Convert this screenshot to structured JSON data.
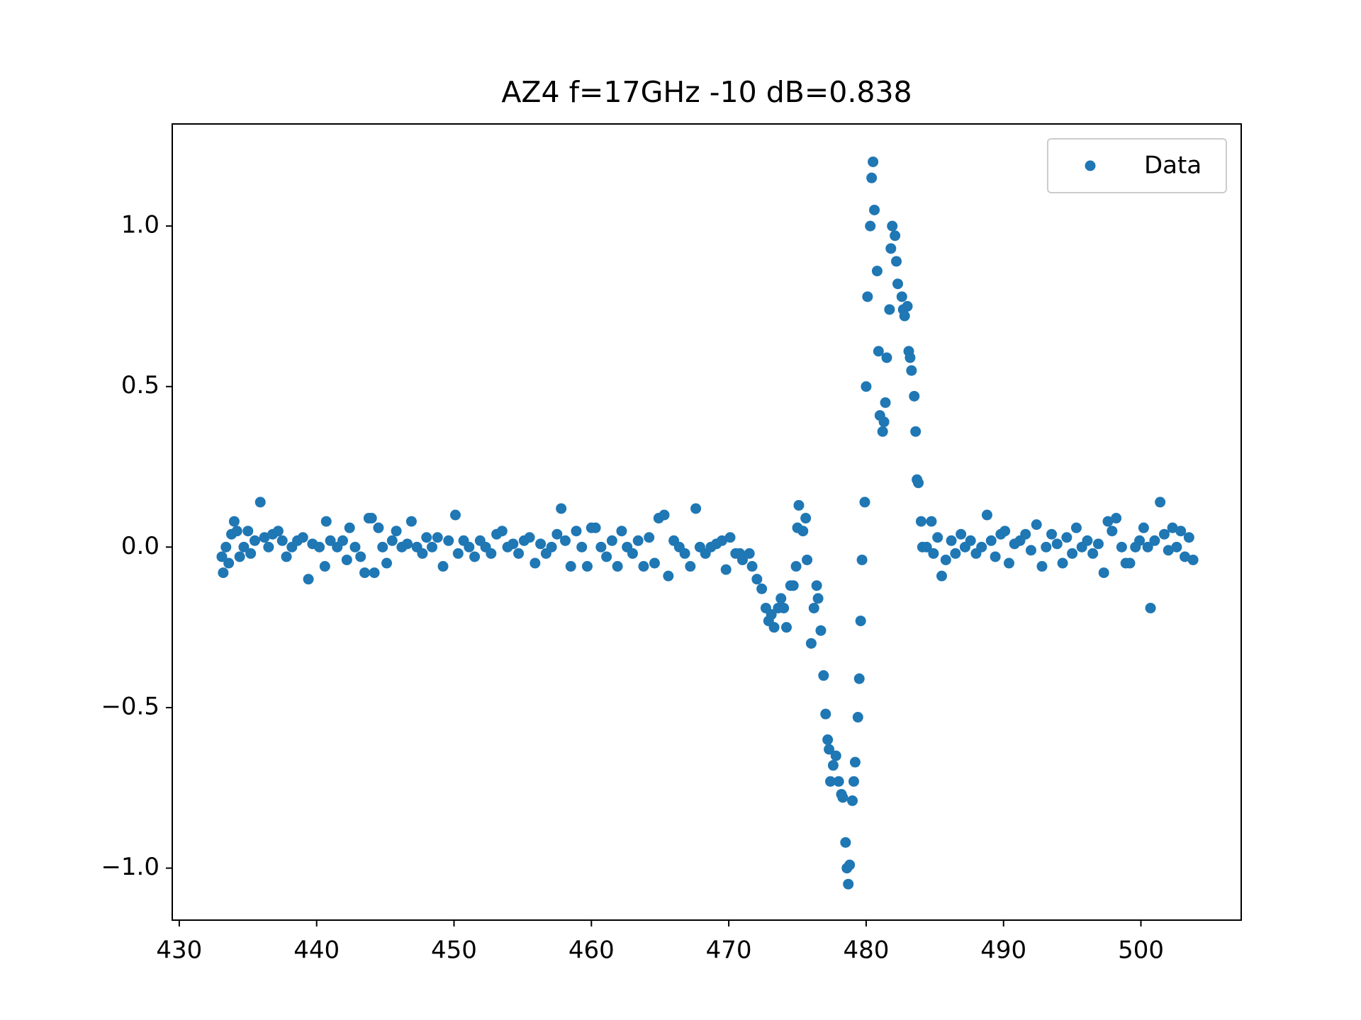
{
  "chart_data": {
    "type": "scatter",
    "title": "AZ4 f=17GHz -10 dB=0.838",
    "series": [
      {
        "name": "Data",
        "color": "#1f77b4",
        "x": [
          433.1,
          433.2,
          433.4,
          433.6,
          433.8,
          434.0,
          434.2,
          434.4,
          434.7,
          435.0,
          435.2,
          435.5,
          435.9,
          436.2,
          436.5,
          436.8,
          437.2,
          437.5,
          437.8,
          438.2,
          438.6,
          439.0,
          439.4,
          439.7,
          440.2,
          440.6,
          440.7,
          441.0,
          441.5,
          441.9,
          442.2,
          442.4,
          442.8,
          443.2,
          443.5,
          443.8,
          444.0,
          444.2,
          444.5,
          444.8,
          445.1,
          445.5,
          445.8,
          446.2,
          446.6,
          446.9,
          447.3,
          447.7,
          448.0,
          448.4,
          448.8,
          449.2,
          449.6,
          450.1,
          450.3,
          450.7,
          451.1,
          451.5,
          451.9,
          452.3,
          452.7,
          453.1,
          453.5,
          453.9,
          454.3,
          454.7,
          455.1,
          455.5,
          455.9,
          456.3,
          456.7,
          457.1,
          457.5,
          457.8,
          458.1,
          458.5,
          458.9,
          459.3,
          459.7,
          460.0,
          460.3,
          460.7,
          461.1,
          461.5,
          461.9,
          462.2,
          462.6,
          463.0,
          463.4,
          463.8,
          464.2,
          464.6,
          464.9,
          465.3,
          465.6,
          466.0,
          466.4,
          466.8,
          467.2,
          467.6,
          467.9,
          468.3,
          468.7,
          469.1,
          469.5,
          469.8,
          470.1,
          470.5,
          470.8,
          471.0,
          471.5,
          471.7,
          472.05,
          472.4,
          472.7,
          472.9,
          473.1,
          473.3,
          473.6,
          473.8,
          474.0,
          474.2,
          474.5,
          474.7,
          474.9,
          475.0,
          475.1,
          475.4,
          475.6,
          475.7,
          476.0,
          476.2,
          476.4,
          476.5,
          476.7,
          476.9,
          477.05,
          477.2,
          477.3,
          477.4,
          477.6,
          477.8,
          478.0,
          478.2,
          478.3,
          478.5,
          478.6,
          478.8,
          478.7,
          479.0,
          479.1,
          479.2,
          479.4,
          479.5,
          479.6,
          479.7,
          479.9,
          480.0,
          480.1,
          480.3,
          480.4,
          480.5,
          480.6,
          480.8,
          480.9,
          481.0,
          481.2,
          481.3,
          481.4,
          481.5,
          481.7,
          481.8,
          481.9,
          482.1,
          482.2,
          482.3,
          482.6,
          482.7,
          482.8,
          483.0,
          483.1,
          483.2,
          483.3,
          483.5,
          483.6,
          483.7,
          483.8,
          484.0,
          484.1,
          484.4,
          484.75,
          484.9,
          485.2,
          485.5,
          485.8,
          486.2,
          486.5,
          486.9,
          487.2,
          487.6,
          488.0,
          488.4,
          488.8,
          489.1,
          489.4,
          489.8,
          490.1,
          490.4,
          490.8,
          491.2,
          491.6,
          492.0,
          492.4,
          492.8,
          493.1,
          493.5,
          493.9,
          494.3,
          494.6,
          495.0,
          495.3,
          495.7,
          496.1,
          496.5,
          496.9,
          497.3,
          497.6,
          497.9,
          498.2,
          498.6,
          498.9,
          499.2,
          499.6,
          499.9,
          500.2,
          500.5,
          500.7,
          501.0,
          501.4,
          501.7,
          502.0,
          502.3,
          502.6,
          502.9,
          503.2,
          503.5,
          503.8
        ],
        "values": [
          -0.03,
          -0.08,
          0.0,
          -0.05,
          0.04,
          0.08,
          0.05,
          -0.03,
          0.0,
          0.05,
          -0.02,
          0.02,
          0.14,
          0.03,
          0.0,
          0.04,
          0.05,
          0.02,
          -0.03,
          0.0,
          0.02,
          0.03,
          -0.1,
          0.01,
          0.0,
          -0.06,
          0.08,
          0.02,
          0.0,
          0.02,
          -0.04,
          0.06,
          0.0,
          -0.03,
          -0.08,
          0.09,
          0.09,
          -0.08,
          0.06,
          0.0,
          -0.05,
          0.02,
          0.05,
          0.0,
          0.01,
          0.08,
          0.0,
          -0.02,
          0.03,
          0.0,
          0.03,
          -0.06,
          0.02,
          0.1,
          -0.02,
          0.02,
          0.0,
          -0.03,
          0.02,
          0.0,
          -0.02,
          0.04,
          0.05,
          0.0,
          0.01,
          -0.02,
          0.02,
          0.03,
          -0.05,
          0.01,
          -0.02,
          0.0,
          0.04,
          0.12,
          0.02,
          -0.06,
          0.05,
          0.0,
          -0.06,
          0.06,
          0.06,
          0.0,
          -0.03,
          0.02,
          -0.06,
          0.05,
          0.0,
          -0.02,
          0.02,
          -0.06,
          0.03,
          -0.05,
          0.09,
          0.1,
          -0.09,
          0.02,
          0.0,
          -0.02,
          -0.06,
          0.12,
          0.0,
          -0.02,
          0.0,
          0.01,
          0.02,
          -0.07,
          0.03,
          -0.02,
          -0.02,
          -0.04,
          -0.02,
          -0.06,
          -0.1,
          -0.13,
          -0.19,
          -0.23,
          -0.21,
          -0.25,
          -0.19,
          -0.16,
          -0.19,
          -0.25,
          -0.12,
          -0.12,
          -0.06,
          0.06,
          0.13,
          0.05,
          0.09,
          -0.04,
          -0.3,
          -0.19,
          -0.12,
          -0.16,
          -0.26,
          -0.4,
          -0.52,
          -0.6,
          -0.63,
          -0.73,
          -0.68,
          -0.65,
          -0.73,
          -0.77,
          -0.78,
          -0.92,
          -1.0,
          -0.99,
          -1.05,
          -0.79,
          -0.73,
          -0.67,
          -0.53,
          -0.41,
          -0.23,
          -0.04,
          0.14,
          0.5,
          0.78,
          1.0,
          1.15,
          1.2,
          1.05,
          0.86,
          0.61,
          0.41,
          0.36,
          0.39,
          0.45,
          0.59,
          0.74,
          0.93,
          1.0,
          0.97,
          0.89,
          0.82,
          0.78,
          0.74,
          0.72,
          0.75,
          0.61,
          0.59,
          0.55,
          0.47,
          0.36,
          0.21,
          0.2,
          0.08,
          0.0,
          0.0,
          0.08,
          -0.02,
          0.03,
          -0.09,
          -0.04,
          0.02,
          -0.02,
          0.04,
          0.0,
          0.02,
          -0.02,
          0.0,
          0.1,
          0.02,
          -0.03,
          0.04,
          0.05,
          -0.05,
          0.01,
          0.02,
          0.04,
          -0.01,
          0.07,
          -0.06,
          0.0,
          0.04,
          0.01,
          -0.05,
          0.03,
          -0.02,
          0.06,
          0.0,
          0.02,
          -0.02,
          0.01,
          -0.08,
          0.08,
          0.05,
          0.09,
          0.0,
          -0.05,
          -0.05,
          0.0,
          0.02,
          0.06,
          0.0,
          -0.19,
          0.02,
          0.14,
          0.04,
          -0.01,
          0.06,
          0.0,
          0.05,
          -0.03,
          0.03,
          -0.04
        ]
      }
    ],
    "xlim": [
      429.49,
      507.3
    ],
    "ylim": [
      -1.162,
      1.318
    ],
    "xticks": [
      430,
      440,
      450,
      460,
      470,
      480,
      490,
      500
    ],
    "yticks": [
      {
        "value": -1.0,
        "label": "−1.0"
      },
      {
        "value": -0.5,
        "label": "−0.5"
      },
      {
        "value": 0.0,
        "label": "0.0"
      },
      0.5,
      {
        "value": 1.0,
        "label": "1.0"
      }
    ],
    "legend": "upper right"
  }
}
